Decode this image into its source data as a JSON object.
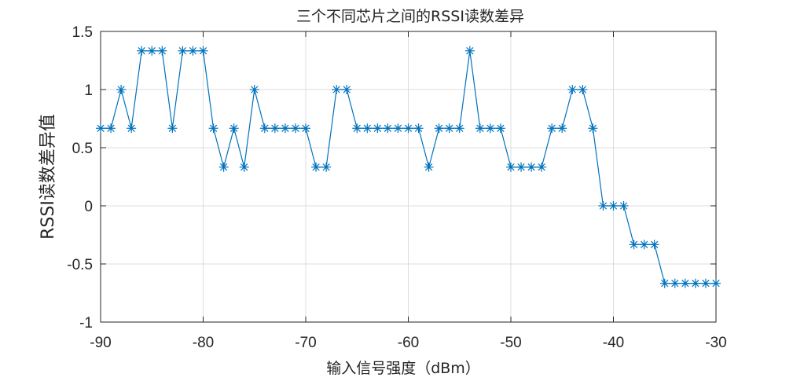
{
  "chart_data": {
    "type": "line",
    "title": "三个不同芯片之间的RSSI读数差异",
    "xlabel": "输入信号强度（dBm）",
    "ylabel": "RSSI读数差异值",
    "xlim": [
      -90,
      -30
    ],
    "ylim": [
      -1,
      1.5
    ],
    "xticks": [
      -90,
      -80,
      -70,
      -60,
      -50,
      -40,
      -30
    ],
    "yticks": [
      -1,
      -0.5,
      0,
      0.5,
      1,
      1.5
    ],
    "xtick_labels": [
      "-90",
      "-80",
      "-70",
      "-60",
      "-50",
      "-40",
      "-30"
    ],
    "ytick_labels": [
      "-1",
      "-0.5",
      "0",
      "0.5",
      "1",
      "1.5"
    ],
    "grid": true,
    "marker": "asterisk",
    "series": [
      {
        "color": "#0072bd",
        "x": [
          -90,
          -89,
          -88,
          -87,
          -86,
          -85,
          -84,
          -83,
          -82,
          -81,
          -80,
          -79,
          -78,
          -77,
          -76,
          -75,
          -74,
          -73,
          -72,
          -71,
          -70,
          -69,
          -68,
          -67,
          -66,
          -65,
          -64,
          -63,
          -62,
          -61,
          -60,
          -59,
          -58,
          -57,
          -56,
          -55,
          -54,
          -53,
          -52,
          -51,
          -50,
          -49,
          -48,
          -47,
          -46,
          -45,
          -44,
          -43,
          -42,
          -41,
          -40,
          -39,
          -38,
          -37,
          -36,
          -35,
          -34,
          -33,
          -32,
          -31,
          -30
        ],
        "y": [
          0.667,
          0.667,
          1,
          0.667,
          1.333,
          1.333,
          1.333,
          0.667,
          1.333,
          1.333,
          1.333,
          0.667,
          0.333,
          0.667,
          0.333,
          1,
          0.667,
          0.667,
          0.667,
          0.667,
          0.667,
          0.333,
          0.333,
          1,
          1,
          0.667,
          0.667,
          0.667,
          0.667,
          0.667,
          0.667,
          0.667,
          0.333,
          0.667,
          0.667,
          0.667,
          1.333,
          0.667,
          0.667,
          0.667,
          0.333,
          0.333,
          0.333,
          0.333,
          0.667,
          0.667,
          1,
          1,
          0.667,
          0,
          0,
          0,
          -0.333,
          -0.333,
          -0.333,
          -0.667,
          -0.667,
          -0.667,
          -0.667,
          -0.667,
          -0.667
        ]
      }
    ]
  }
}
